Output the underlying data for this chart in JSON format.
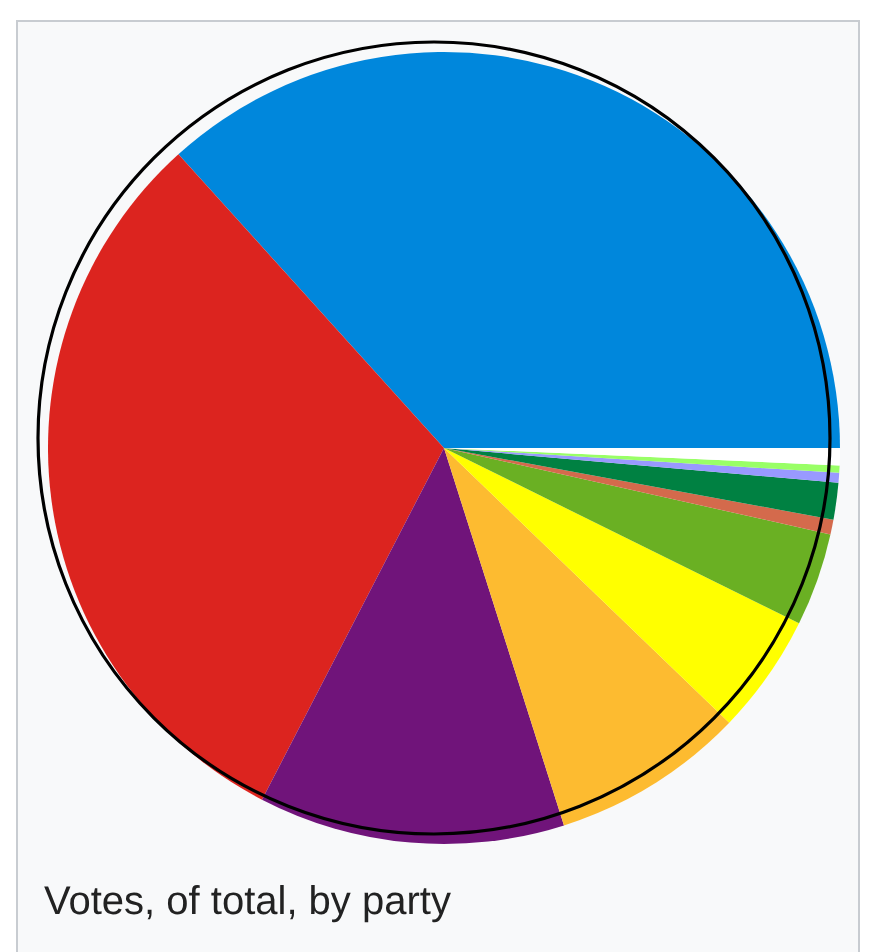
{
  "chart_data": {
    "type": "pie",
    "title": "Votes, of total, by party",
    "categories": [
      null,
      null,
      null,
      null,
      null,
      null,
      null,
      null,
      null,
      null,
      null
    ],
    "values": [
      36.7,
      30.7,
      12.5,
      7.9,
      4.9,
      3.8,
      0.6,
      1.5,
      0.4,
      0.3,
      0.7
    ],
    "colors": [
      "#0087dc",
      "#dc241f",
      "#70147a",
      "#fdbb30",
      "#ffff00",
      "#6ab023",
      "#d46a4c",
      "#008142",
      "#9999ff",
      "#99ff66",
      "#ffffff"
    ]
  }
}
